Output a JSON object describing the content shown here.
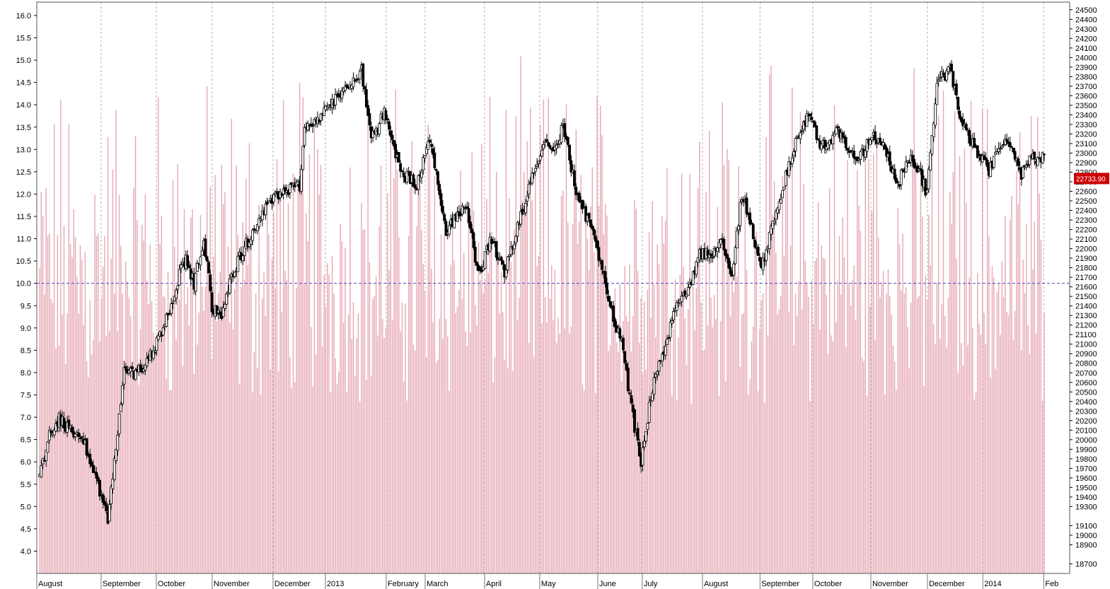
{
  "chart_data": {
    "type": "candlestick",
    "title": "",
    "xlabel": "",
    "ylabel": "",
    "x_tick_labels": [
      "August",
      "September",
      "October",
      "November",
      "December",
      "2013",
      "February",
      "March",
      "April",
      "May",
      "June",
      "July",
      "August",
      "September",
      "October",
      "November",
      "December",
      "2014",
      "Feb"
    ],
    "left_axis": {
      "range": [
        3.5,
        16.3
      ],
      "ticks": [
        "4.0",
        "4.5",
        "5.0",
        "5.5",
        "6.0",
        "6.5",
        "7.0",
        "7.5",
        "8.0",
        "8.5",
        "9.0",
        "9.5",
        "10.0",
        "10.5",
        "11.0",
        "11.5",
        "12.0",
        "12.5",
        "13.0",
        "13.5",
        "14.0",
        "14.5",
        "15.0",
        "15.5",
        "16.0"
      ]
    },
    "right_axis": {
      "range": [
        18600,
        24580
      ],
      "ticks": [
        "18700",
        "18900",
        "19000",
        "19100",
        "19300",
        "19400",
        "19500",
        "19600",
        "19700",
        "19800",
        "19900",
        "20000",
        "20100",
        "20200",
        "20300",
        "20400",
        "20500",
        "20600",
        "20700",
        "20800",
        "20900",
        "21000",
        "21100",
        "21200",
        "21300",
        "21400",
        "21500",
        "21600",
        "21700",
        "21800",
        "21900",
        "22000",
        "22100",
        "22200",
        "22300",
        "22400",
        "22500",
        "22600",
        "22700",
        "22800",
        "22900",
        "23000",
        "23100",
        "23200",
        "23300",
        "23400",
        "23500",
        "23600",
        "23700",
        "23800",
        "23900",
        "24000",
        "24100",
        "24200",
        "24300",
        "24400",
        "24500"
      ]
    },
    "reference_line": {
      "value": 10.0,
      "axis": "left",
      "style": "dashed",
      "color": "#5555cc"
    },
    "last_price_label": {
      "text": "22733.90",
      "value": 22733.9,
      "color": "#cc0000"
    },
    "price_keyframes": [
      [
        0,
        5.7
      ],
      [
        6,
        6.6
      ],
      [
        12,
        7.0
      ],
      [
        18,
        6.7
      ],
      [
        26,
        6.6
      ],
      [
        36,
        5.5
      ],
      [
        42,
        4.7
      ],
      [
        46,
        6.0
      ],
      [
        52,
        8.0
      ],
      [
        60,
        8.0
      ],
      [
        70,
        8.5
      ],
      [
        78,
        9.2
      ],
      [
        86,
        10.2
      ],
      [
        90,
        10.5
      ],
      [
        95,
        10.0
      ],
      [
        101,
        11.0
      ],
      [
        106,
        9.5
      ],
      [
        112,
        9.2
      ],
      [
        118,
        10.2
      ],
      [
        126,
        10.8
      ],
      [
        136,
        11.5
      ],
      [
        146,
        12.0
      ],
      [
        160,
        12.2
      ],
      [
        163,
        13.5
      ],
      [
        172,
        13.7
      ],
      [
        186,
        14.3
      ],
      [
        198,
        14.8
      ],
      [
        204,
        13.2
      ],
      [
        212,
        13.8
      ],
      [
        222,
        12.5
      ],
      [
        232,
        12.2
      ],
      [
        240,
        13.2
      ],
      [
        250,
        11.2
      ],
      [
        262,
        11.8
      ],
      [
        270,
        10.2
      ],
      [
        278,
        11.0
      ],
      [
        286,
        10.2
      ],
      [
        300,
        12.0
      ],
      [
        310,
        13.2
      ],
      [
        318,
        13.0
      ],
      [
        322,
        13.6
      ],
      [
        330,
        12.0
      ],
      [
        342,
        11.0
      ],
      [
        350,
        9.6
      ],
      [
        358,
        8.7
      ],
      [
        364,
        7.2
      ],
      [
        370,
        6.0
      ],
      [
        376,
        7.5
      ],
      [
        384,
        8.5
      ],
      [
        392,
        9.5
      ],
      [
        400,
        10.0
      ],
      [
        406,
        10.7
      ],
      [
        414,
        10.6
      ],
      [
        420,
        11.0
      ],
      [
        426,
        10.2
      ],
      [
        432,
        12.0
      ],
      [
        438,
        11.2
      ],
      [
        444,
        10.3
      ],
      [
        452,
        11.5
      ],
      [
        460,
        12.5
      ],
      [
        466,
        13.3
      ],
      [
        474,
        13.8
      ],
      [
        480,
        13.0
      ],
      [
        490,
        13.4
      ],
      [
        498,
        13.0
      ],
      [
        504,
        12.8
      ],
      [
        512,
        13.3
      ],
      [
        520,
        13.0
      ],
      [
        528,
        12.2
      ],
      [
        534,
        12.8
      ],
      [
        540,
        12.6
      ],
      [
        546,
        12.0
      ],
      [
        552,
        14.5
      ],
      [
        560,
        14.8
      ],
      [
        568,
        13.5
      ],
      [
        576,
        13.0
      ],
      [
        584,
        12.5
      ],
      [
        592,
        13.2
      ],
      [
        598,
        13.0
      ],
      [
        604,
        12.4
      ],
      [
        610,
        12.8
      ],
      [
        618,
        12.8
      ]
    ],
    "volume": {
      "axis": "left",
      "min": 4.5,
      "max": 15.3,
      "color": "#e6a7b3"
    }
  }
}
